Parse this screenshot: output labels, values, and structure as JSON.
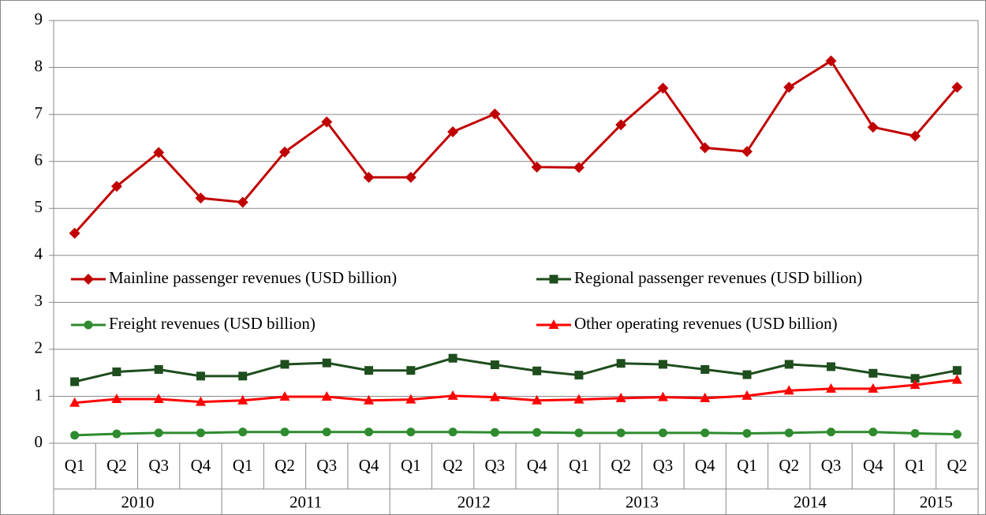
{
  "chart_data": {
    "type": "line",
    "categories": [
      "Q1",
      "Q2",
      "Q3",
      "Q4",
      "Q1",
      "Q2",
      "Q3",
      "Q4",
      "Q1",
      "Q2",
      "Q3",
      "Q4",
      "Q1",
      "Q2",
      "Q3",
      "Q4",
      "Q1",
      "Q2",
      "Q3",
      "Q4",
      "Q1",
      "Q2"
    ],
    "year_labels": [
      "2010",
      null,
      null,
      null,
      "2011",
      null,
      null,
      null,
      "2012",
      null,
      null,
      null,
      "2013",
      null,
      null,
      null,
      "2014",
      null,
      null,
      null,
      "2015",
      null
    ],
    "series": [
      {
        "name": "Mainline passenger revenues (USD billion)",
        "color": "#c00000",
        "marker": "diamond",
        "values": [
          4.47,
          5.47,
          6.19,
          5.22,
          5.13,
          6.2,
          6.84,
          5.66,
          5.66,
          6.63,
          7.01,
          5.88,
          5.87,
          6.78,
          7.56,
          6.29,
          6.21,
          7.58,
          8.14,
          6.73,
          6.54,
          7.58
        ]
      },
      {
        "name": "Regional passenger revenues (USD billion)",
        "color": "#1e4d1e",
        "marker": "square",
        "values": [
          1.31,
          1.52,
          1.57,
          1.43,
          1.43,
          1.68,
          1.71,
          1.55,
          1.55,
          1.81,
          1.67,
          1.54,
          1.45,
          1.7,
          1.68,
          1.57,
          1.46,
          1.68,
          1.63,
          1.49,
          1.38,
          1.55
        ]
      },
      {
        "name": "Freight revenues (USD billion)",
        "color": "#2e8b2e",
        "marker": "circle",
        "values": [
          0.17,
          0.2,
          0.22,
          0.22,
          0.24,
          0.24,
          0.24,
          0.24,
          0.24,
          0.24,
          0.23,
          0.23,
          0.22,
          0.22,
          0.22,
          0.22,
          0.21,
          0.22,
          0.24,
          0.24,
          0.21,
          0.19
        ]
      },
      {
        "name": "Other operating revenues (USD billion)",
        "color": "#ff0000",
        "marker": "triangle",
        "values": [
          0.86,
          0.94,
          0.94,
          0.88,
          0.91,
          0.99,
          0.99,
          0.91,
          0.93,
          1.01,
          0.98,
          0.91,
          0.93,
          0.96,
          0.98,
          0.96,
          1.01,
          1.12,
          1.16,
          1.16,
          1.24,
          1.35
        ]
      }
    ],
    "ylim": [
      0,
      9
    ],
    "yticks": [
      0,
      1,
      2,
      3,
      4,
      5,
      6,
      7,
      8,
      9
    ],
    "grid": true
  }
}
